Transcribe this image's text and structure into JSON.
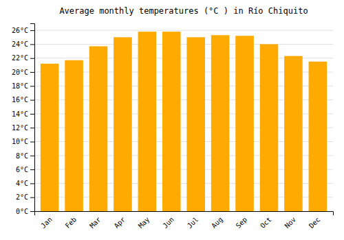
{
  "chart_data": {
    "type": "bar",
    "title": "Average monthly temperatures (°C ) in Río Chiquito",
    "categories": [
      "Jan",
      "Feb",
      "Mar",
      "Apr",
      "May",
      "Jun",
      "Jul",
      "Aug",
      "Sep",
      "Oct",
      "Nov",
      "Dec"
    ],
    "values": [
      21.2,
      21.7,
      23.7,
      25.0,
      25.8,
      25.8,
      25.0,
      25.3,
      25.2,
      24.0,
      22.3,
      21.5
    ],
    "color": "#FFAA00",
    "ylim": [
      0,
      27
    ],
    "yticks": [
      {
        "value": 0,
        "label": "0°C"
      },
      {
        "value": 2,
        "label": "2°C"
      },
      {
        "value": 4,
        "label": "4°C"
      },
      {
        "value": 6,
        "label": "6°C"
      },
      {
        "value": 8,
        "label": "8°C"
      },
      {
        "value": 10,
        "label": "10°C"
      },
      {
        "value": 12,
        "label": "12°C"
      },
      {
        "value": 14,
        "label": "14°C"
      },
      {
        "value": 16,
        "label": "16°C"
      },
      {
        "value": 18,
        "label": "18°C"
      },
      {
        "value": 20,
        "label": "20°C"
      },
      {
        "value": 22,
        "label": "22°C"
      },
      {
        "value": 24,
        "label": "24°C"
      },
      {
        "value": 26,
        "label": "26°C"
      }
    ],
    "grid": true
  }
}
